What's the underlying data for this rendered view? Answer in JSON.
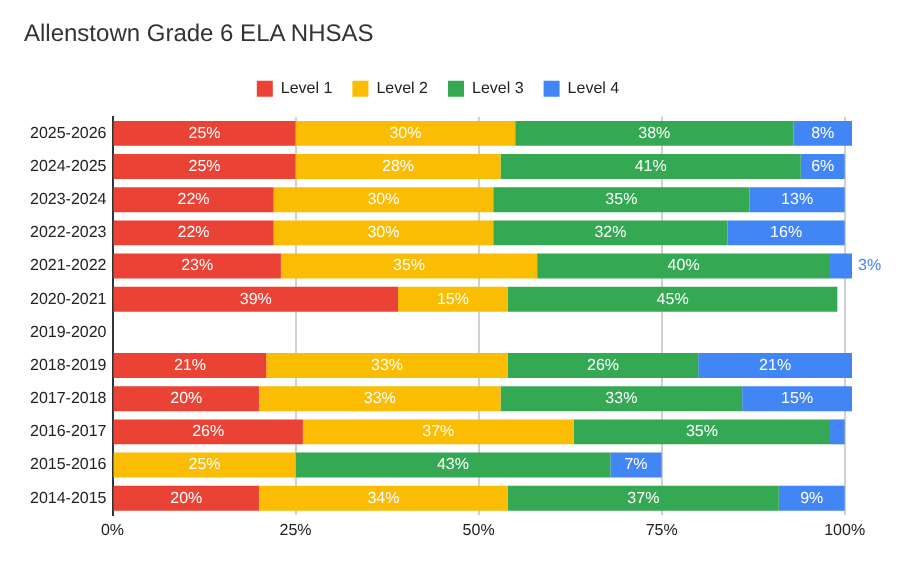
{
  "chart_data": {
    "type": "bar",
    "orientation": "horizontal",
    "stacked": true,
    "title": "Allenstown Grade 6 ELA NHSAS",
    "categories": [
      "2025-2026",
      "2024-2025",
      "2023-2024",
      "2022-2023",
      "2021-2022",
      "2020-2021",
      "2019-2020",
      "2018-2019",
      "2017-2018",
      "2016-2017",
      "2015-2016",
      "2014-2015"
    ],
    "series": [
      {
        "name": "Level 1",
        "color": "#ea4335",
        "values": [
          25,
          25,
          22,
          22,
          23,
          39,
          null,
          21,
          20,
          26,
          null,
          20
        ],
        "value_labels": [
          "25%",
          "25%",
          "22%",
          "22%",
          "23%",
          "39%",
          null,
          "21%",
          "20%",
          "26%",
          null,
          "20%"
        ]
      },
      {
        "name": "Level 2",
        "color": "#fbbc04",
        "values": [
          30,
          28,
          30,
          30,
          35,
          15,
          null,
          33,
          33,
          37,
          25,
          34
        ],
        "value_labels": [
          "30%",
          "28%",
          "30%",
          "30%",
          "35%",
          "15%",
          null,
          "33%",
          "33%",
          "37%",
          "25%",
          "34%"
        ]
      },
      {
        "name": "Level 3",
        "color": "#34a853",
        "values": [
          38,
          41,
          35,
          32,
          40,
          45,
          null,
          26,
          33,
          35,
          43,
          37
        ],
        "value_labels": [
          "38%",
          "41%",
          "35%",
          "32%",
          "40%",
          "45%",
          null,
          "26%",
          "33%",
          "35%",
          "43%",
          "37%"
        ]
      },
      {
        "name": "Level 4",
        "color": "#4285f4",
        "values": [
          8,
          6,
          13,
          16,
          3,
          null,
          null,
          21,
          15,
          2,
          7,
          9
        ],
        "value_labels": [
          "8%",
          "6%",
          "13%",
          "16%",
          "3%",
          null,
          null,
          "21%",
          "15%",
          null,
          "7%",
          "9%"
        ]
      }
    ],
    "xlim": [
      0,
      101
    ],
    "xticks": [
      {
        "value": 0,
        "label": "0%"
      },
      {
        "value": 25,
        "label": "25%"
      },
      {
        "value": 50,
        "label": "50%"
      },
      {
        "value": 75,
        "label": "75%"
      },
      {
        "value": 100,
        "label": "100%"
      }
    ],
    "grid": "x",
    "legend": "top"
  }
}
